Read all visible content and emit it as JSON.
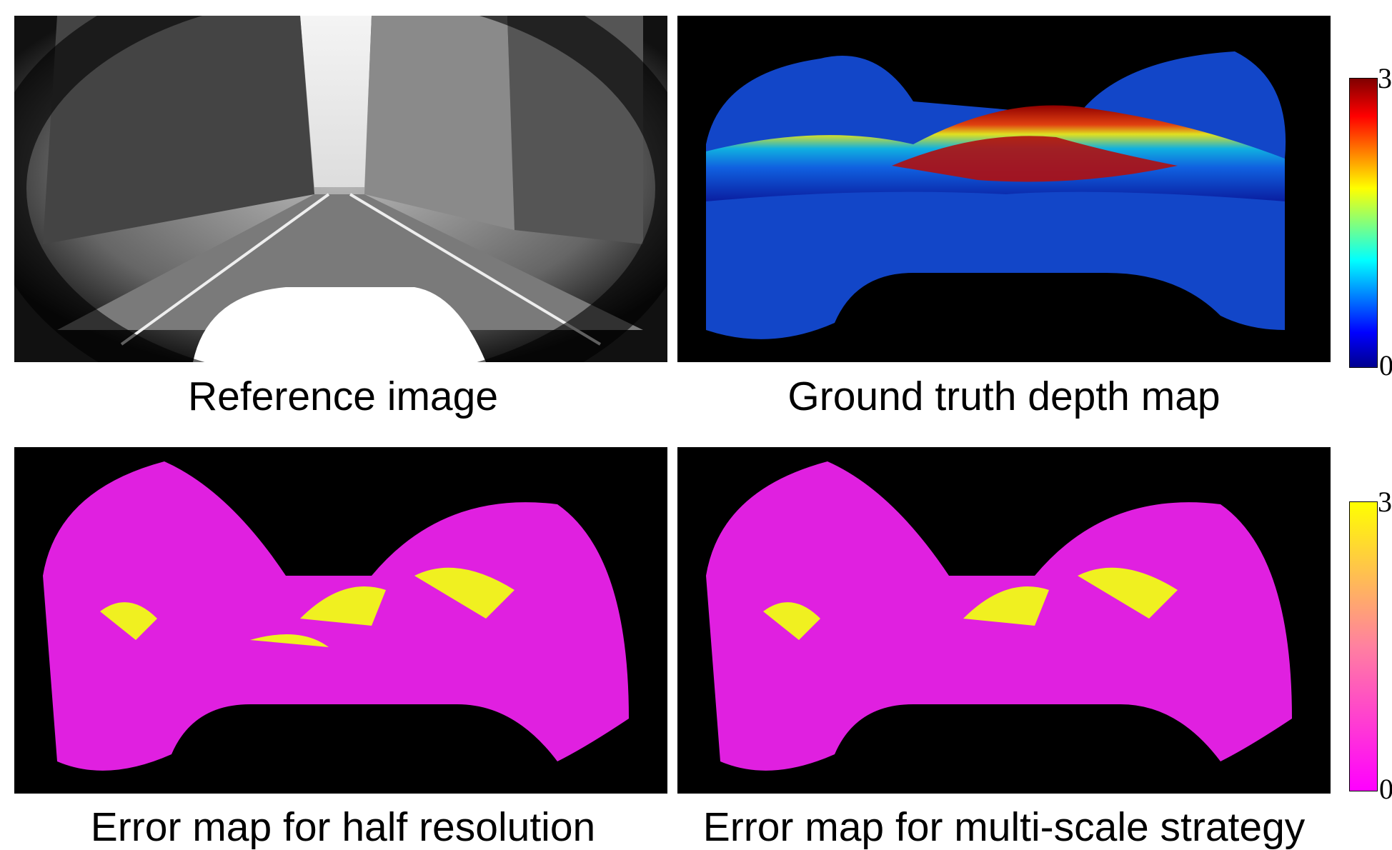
{
  "panels": [
    {
      "caption": "Reference image"
    },
    {
      "caption": "Ground truth depth map"
    },
    {
      "caption": "Error map for half resolution"
    },
    {
      "caption": "Error map for multi-scale strategy"
    }
  ],
  "colorbars": [
    {
      "max_label": "3",
      "min_label": "0"
    },
    {
      "max_label": "3",
      "min_label": "0"
    }
  ]
}
